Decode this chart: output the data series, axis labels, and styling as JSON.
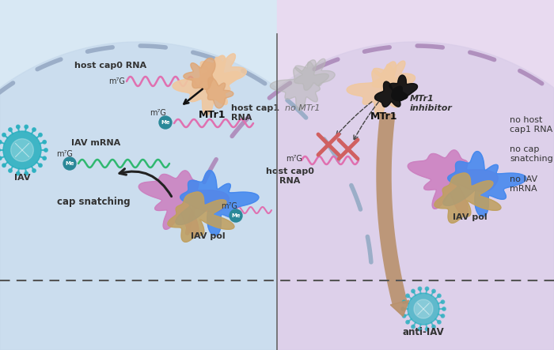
{
  "bg_outer": "#fdf8f0",
  "bg_left_cell": "#d8e8f4",
  "bg_right_cell": "#e8daf0",
  "dashed_color_left": "#9baec8",
  "dashed_color_right": "#b090be",
  "divider_color": "#888888",
  "pink_rna": "#e070b0",
  "green_rna": "#30b870",
  "teal": "#2a8a9a",
  "tan": "#b8906a",
  "blue_arrow": "#3344aa",
  "dark": "#333333",
  "peach_protein": "#f0c8a0",
  "peach_dark": "#e0a878",
  "gray_protein": "#b8b8b8",
  "black_inhibitor": "#111111",
  "pink_pol": "#cc80c0",
  "blue_pol": "#4488ee",
  "tan_pol": "#c0a060",
  "red_cross": "#d06060",
  "me_color": "#2a8898",
  "label_host_cap0_left": "host cap0 RNA",
  "label_m7G": "m⁷G",
  "label_MTr1_left": "MTr1",
  "label_host_cap1": "host cap1\nRNA",
  "label_IAV_mRNA": "IAV mRNA",
  "label_IAV": "IAV",
  "label_cap_snatching": "cap snatching",
  "label_IAV_pol_left": "IAV pol",
  "label_no_MTr1": "no MTr1",
  "label_MTr1_right": "MTr1",
  "label_MTr1_inhibitor": "MTr1\ninhibitor",
  "label_host_cap0_right": "host cap0\nRNA",
  "label_IAV_pol_right": "IAV pol",
  "label_no_host_cap1": "no host\ncap1 RNA",
  "label_no_cap_snatching": "no cap\nsnatching",
  "label_no_IAV_mRNA": "no IAV\nmRNA",
  "label_anti_IAV": "anti-IAV"
}
